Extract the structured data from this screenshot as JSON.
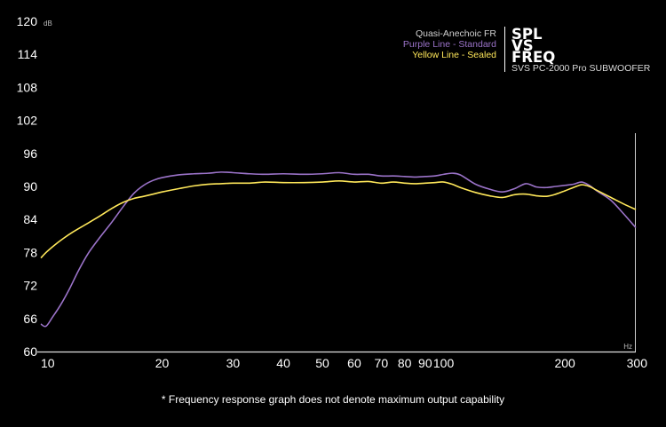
{
  "chart_data": {
    "type": "line",
    "title": "SPL VS FREQ",
    "title_lines": [
      "SPL",
      "VS",
      "FREQ"
    ],
    "subtitle": "SVS PC-2000 Pro SUBWOOFER",
    "legend_heading": "Quasi-Anechoic FR",
    "xlabel": "Hz",
    "ylabel": "dB",
    "x_scale": "log",
    "xlim": [
      10,
      300
    ],
    "ylim": [
      60,
      120
    ],
    "y_ticks": [
      "60",
      "66",
      "72",
      "78",
      "84",
      "90",
      "96",
      "102",
      "108",
      "114",
      "120"
    ],
    "x_ticks": [
      "10",
      "20",
      "30",
      "40",
      "50",
      "60",
      "70",
      "80",
      "90",
      "100",
      "200",
      "300"
    ],
    "footnote": "* Frequency response graph does not denote maximum output capability",
    "series": [
      {
        "name": "Purple Line - Standard",
        "color": "#9b73c9",
        "x": [
          10,
          10.3,
          10.7,
          11.2,
          11.8,
          12.4,
          13.1,
          14,
          15,
          16,
          17,
          18,
          19,
          20,
          22,
          24,
          26,
          28,
          30,
          33,
          36,
          40,
          45,
          50,
          55,
          60,
          65,
          70,
          75,
          80,
          85,
          90,
          95,
          100,
          105,
          110,
          120,
          130,
          140,
          150,
          160,
          170,
          180,
          190,
          200,
          210,
          220,
          230,
          240,
          260,
          280,
          300
        ],
        "y": [
          65.0,
          64.6,
          66.3,
          68.5,
          71.5,
          74.7,
          77.8,
          80.7,
          83.5,
          86.3,
          88.7,
          90.2,
          91.1,
          91.6,
          92.1,
          92.3,
          92.4,
          92.6,
          92.5,
          92.3,
          92.2,
          92.3,
          92.2,
          92.3,
          92.5,
          92.2,
          92.2,
          91.9,
          91.9,
          91.8,
          91.7,
          91.8,
          91.9,
          92.2,
          92.4,
          92.1,
          90.4,
          89.5,
          89.0,
          89.6,
          90.5,
          89.9,
          89.8,
          90.0,
          90.2,
          90.4,
          90.8,
          90.2,
          89.2,
          87.5,
          85.0,
          82.5
        ]
      },
      {
        "name": "Yellow Line - Sealed",
        "color": "#ffe85a",
        "x": [
          10,
          10.3,
          10.8,
          11.4,
          12,
          13,
          14,
          15,
          16,
          17,
          18,
          19,
          20,
          22,
          24,
          26,
          28,
          30,
          33,
          36,
          40,
          45,
          50,
          55,
          60,
          65,
          70,
          75,
          80,
          85,
          90,
          95,
          100,
          105,
          110,
          120,
          130,
          140,
          150,
          160,
          170,
          180,
          190,
          200,
          210,
          220,
          230,
          240,
          260,
          280,
          300
        ],
        "y": [
          77.0,
          78.0,
          79.3,
          80.6,
          81.7,
          83.2,
          84.6,
          86.0,
          87.1,
          87.8,
          88.2,
          88.6,
          89.0,
          89.6,
          90.1,
          90.4,
          90.5,
          90.6,
          90.6,
          90.8,
          90.7,
          90.7,
          90.8,
          91.0,
          90.8,
          90.9,
          90.6,
          90.8,
          90.6,
          90.5,
          90.6,
          90.7,
          90.8,
          90.4,
          89.8,
          88.9,
          88.3,
          88.0,
          88.5,
          88.6,
          88.3,
          88.2,
          88.6,
          89.2,
          89.8,
          90.3,
          90.0,
          89.3,
          88.0,
          86.8,
          85.8
        ]
      }
    ]
  }
}
